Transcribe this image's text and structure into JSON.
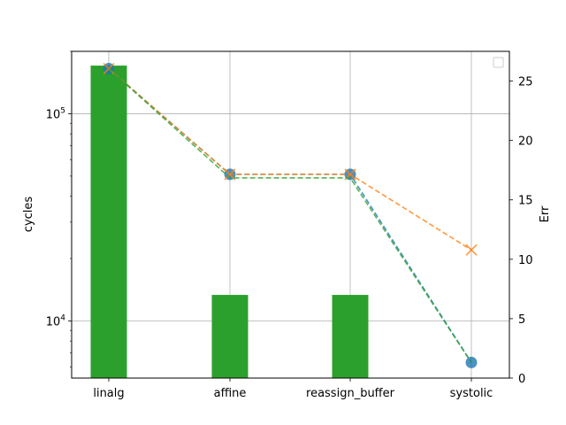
{
  "chart_data": {
    "type": "bar",
    "categories": [
      "linalg",
      "affine",
      "reassign_buffer",
      "systolic"
    ],
    "ylabel": "cycles",
    "y2label": "Err",
    "y_scale": "log",
    "ylim": [
      5300,
      200000
    ],
    "y_ticks": [
      {
        "value": 10000,
        "base": "10",
        "exp": "4"
      },
      {
        "value": 100000,
        "base": "10",
        "exp": "5"
      }
    ],
    "y2lim": [
      0,
      27.5
    ],
    "y2_ticks": [
      0,
      5,
      10,
      15,
      20,
      25
    ],
    "grid": true,
    "legend": "top-right (empty)",
    "bars": {
      "axis": "y2",
      "color": "#2ca02c",
      "values": [
        26.3,
        7.0,
        7.0,
        null
      ]
    },
    "series": [
      {
        "axis": "y",
        "values": [
          165000,
          51000,
          51000,
          6300
        ],
        "color": "#1f77b4",
        "marker": "circle",
        "line": "dashed"
      },
      {
        "axis": "y",
        "values": [
          165000,
          51000,
          51000,
          22000
        ],
        "color": "#ff7f0e",
        "marker": "x",
        "line": "dashed"
      },
      {
        "axis": "y",
        "values": [
          165000,
          49000,
          49000,
          6300
        ],
        "color": "#2ca02c",
        "marker": "none",
        "line": "dashed"
      }
    ]
  }
}
